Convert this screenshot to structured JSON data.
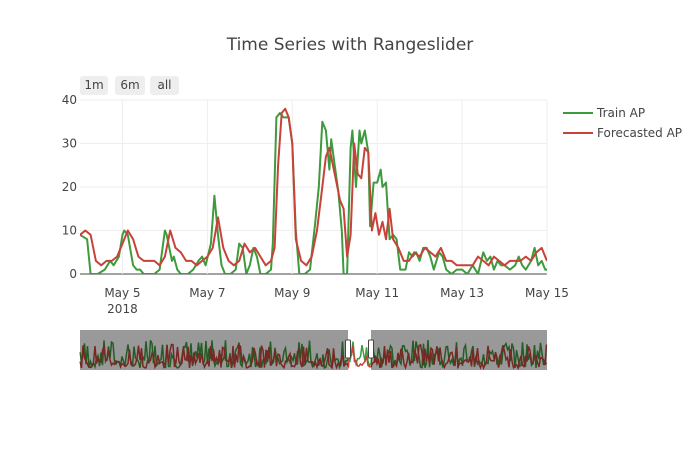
{
  "range_selector": {
    "buttons": [
      "1m",
      "6m",
      "all"
    ]
  },
  "chart_data": {
    "type": "line",
    "title": "Time Series with Rangeslider",
    "xlabel": "",
    "ylabel": "",
    "x_range": [
      "2018-05-04",
      "2018-05-15"
    ],
    "ylim": [
      0,
      40
    ],
    "y_ticks": [
      0,
      10,
      20,
      30,
      40
    ],
    "x_ticks": [
      {
        "date": "2018-05-05",
        "label": "May 5",
        "sublabel": "2018"
      },
      {
        "date": "2018-05-07",
        "label": "May 7",
        "sublabel": ""
      },
      {
        "date": "2018-05-09",
        "label": "May 9",
        "sublabel": ""
      },
      {
        "date": "2018-05-11",
        "label": "May 11",
        "sublabel": ""
      },
      {
        "date": "2018-05-13",
        "label": "May 13",
        "sublabel": ""
      },
      {
        "date": "2018-05-15",
        "label": "May 15",
        "sublabel": ""
      }
    ],
    "grid": true,
    "legend_position": "top-right",
    "rangeslider": true,
    "series": [
      {
        "name": "Train AP",
        "color": "#3d9a3d",
        "points": [
          [
            "2018-05-04 00:00",
            9
          ],
          [
            "2018-05-04 04:00",
            8
          ],
          [
            "2018-05-04 06:00",
            0
          ],
          [
            "2018-05-04 10:00",
            0
          ],
          [
            "2018-05-04 14:00",
            1
          ],
          [
            "2018-05-04 17:00",
            3
          ],
          [
            "2018-05-04 19:00",
            2
          ],
          [
            "2018-05-04 22:00",
            4
          ],
          [
            "2018-05-05 00:00",
            9
          ],
          [
            "2018-05-05 01:00",
            10
          ],
          [
            "2018-05-05 03:00",
            9
          ],
          [
            "2018-05-05 06:00",
            2
          ],
          [
            "2018-05-05 08:00",
            1
          ],
          [
            "2018-05-05 10:00",
            1
          ],
          [
            "2018-05-05 12:00",
            0
          ],
          [
            "2018-05-05 15:00",
            0
          ],
          [
            "2018-05-05 18:00",
            0
          ],
          [
            "2018-05-05 21:00",
            1
          ],
          [
            "2018-05-06 00:00",
            10
          ],
          [
            "2018-05-06 01:00",
            9
          ],
          [
            "2018-05-06 03:00",
            5
          ],
          [
            "2018-05-06 04:00",
            3
          ],
          [
            "2018-05-06 05:00",
            4
          ],
          [
            "2018-05-06 07:00",
            1
          ],
          [
            "2018-05-06 09:00",
            0
          ],
          [
            "2018-05-06 13:00",
            0
          ],
          [
            "2018-05-06 16:00",
            1
          ],
          [
            "2018-05-06 19:00",
            3
          ],
          [
            "2018-05-06 21:00",
            4
          ],
          [
            "2018-05-06 23:00",
            2
          ],
          [
            "2018-05-07 02:00",
            7
          ],
          [
            "2018-05-07 04:00",
            18
          ],
          [
            "2018-05-07 06:00",
            9
          ],
          [
            "2018-05-07 08:00",
            2
          ],
          [
            "2018-05-07 10:00",
            0
          ],
          [
            "2018-05-07 13:00",
            0
          ],
          [
            "2018-05-07 16:00",
            1
          ],
          [
            "2018-05-07 18:00",
            7
          ],
          [
            "2018-05-07 20:00",
            6
          ],
          [
            "2018-05-07 22:00",
            0
          ],
          [
            "2018-05-08 00:00",
            2
          ],
          [
            "2018-05-08 02:00",
            6
          ],
          [
            "2018-05-08 04:00",
            4
          ],
          [
            "2018-05-08 06:00",
            0
          ],
          [
            "2018-05-08 09:00",
            0
          ],
          [
            "2018-05-08 12:00",
            1
          ],
          [
            "2018-05-08 13:00",
            7
          ],
          [
            "2018-05-08 15:00",
            36
          ],
          [
            "2018-05-08 17:00",
            37
          ],
          [
            "2018-05-08 19:00",
            36
          ],
          [
            "2018-05-08 22:00",
            36
          ],
          [
            "2018-05-09 00:00",
            30
          ],
          [
            "2018-05-09 02:00",
            10
          ],
          [
            "2018-05-09 04:00",
            0
          ],
          [
            "2018-05-09 07:00",
            0
          ],
          [
            "2018-05-09 10:00",
            1
          ],
          [
            "2018-05-09 13:00",
            12
          ],
          [
            "2018-05-09 15:00",
            20
          ],
          [
            "2018-05-09 17:00",
            35
          ],
          [
            "2018-05-09 19:00",
            33
          ],
          [
            "2018-05-09 21:00",
            24
          ],
          [
            "2018-05-09 22:00",
            31
          ],
          [
            "2018-05-10 00:00",
            25
          ],
          [
            "2018-05-10 02:00",
            19
          ],
          [
            "2018-05-10 04:00",
            10
          ],
          [
            "2018-05-10 05:00",
            0
          ],
          [
            "2018-05-10 07:00",
            0
          ],
          [
            "2018-05-10 09:00",
            29
          ],
          [
            "2018-05-10 10:00",
            33
          ],
          [
            "2018-05-10 12:00",
            20
          ],
          [
            "2018-05-10 14:00",
            33
          ],
          [
            "2018-05-10 15:00",
            30
          ],
          [
            "2018-05-10 17:00",
            33
          ],
          [
            "2018-05-10 19:00",
            28
          ],
          [
            "2018-05-10 20:00",
            11
          ],
          [
            "2018-05-10 22:00",
            21
          ],
          [
            "2018-05-11 00:00",
            21
          ],
          [
            "2018-05-11 02:00",
            24
          ],
          [
            "2018-05-11 03:00",
            20
          ],
          [
            "2018-05-11 05:00",
            21
          ],
          [
            "2018-05-11 07:00",
            8
          ],
          [
            "2018-05-11 09:00",
            9
          ],
          [
            "2018-05-11 11:00",
            8
          ],
          [
            "2018-05-11 13:00",
            1
          ],
          [
            "2018-05-11 16:00",
            1
          ],
          [
            "2018-05-11 18:00",
            5
          ],
          [
            "2018-05-11 20:00",
            4
          ],
          [
            "2018-05-11 22:00",
            5
          ],
          [
            "2018-05-12 00:00",
            3
          ],
          [
            "2018-05-12 02:00",
            6
          ],
          [
            "2018-05-12 04:00",
            6
          ],
          [
            "2018-05-12 06:00",
            4
          ],
          [
            "2018-05-12 08:00",
            1
          ],
          [
            "2018-05-12 11:00",
            5
          ],
          [
            "2018-05-12 13:00",
            4
          ],
          [
            "2018-05-12 15:00",
            1
          ],
          [
            "2018-05-12 18:00",
            0
          ],
          [
            "2018-05-12 21:00",
            1
          ],
          [
            "2018-05-13 00:00",
            1
          ],
          [
            "2018-05-13 03:00",
            0
          ],
          [
            "2018-05-13 06:00",
            2
          ],
          [
            "2018-05-13 09:00",
            0
          ],
          [
            "2018-05-13 12:00",
            5
          ],
          [
            "2018-05-13 14:00",
            3
          ],
          [
            "2018-05-13 16:00",
            4
          ],
          [
            "2018-05-13 18:00",
            1
          ],
          [
            "2018-05-13 20:00",
            3
          ],
          [
            "2018-05-13 22:00",
            2
          ],
          [
            "2018-05-14 00:00",
            2
          ],
          [
            "2018-05-14 03:00",
            1
          ],
          [
            "2018-05-14 06:00",
            2
          ],
          [
            "2018-05-14 08:00",
            4
          ],
          [
            "2018-05-14 10:00",
            2
          ],
          [
            "2018-05-14 12:00",
            1
          ],
          [
            "2018-05-14 15:00",
            3
          ],
          [
            "2018-05-14 17:00",
            6
          ],
          [
            "2018-05-14 19:00",
            2
          ],
          [
            "2018-05-14 21:00",
            3
          ],
          [
            "2018-05-14 23:00",
            1
          ],
          [
            "2018-05-15 00:00",
            1
          ]
        ]
      },
      {
        "name": "Forecasted AP",
        "color": "#c8423a",
        "points": [
          [
            "2018-05-04 00:00",
            9
          ],
          [
            "2018-05-04 03:00",
            10
          ],
          [
            "2018-05-04 06:00",
            9
          ],
          [
            "2018-05-04 09:00",
            3
          ],
          [
            "2018-05-04 12:00",
            2
          ],
          [
            "2018-05-04 15:00",
            3
          ],
          [
            "2018-05-04 18:00",
            3
          ],
          [
            "2018-05-04 21:00",
            4
          ],
          [
            "2018-05-05 00:00",
            7
          ],
          [
            "2018-05-05 03:00",
            10
          ],
          [
            "2018-05-05 06:00",
            8
          ],
          [
            "2018-05-05 09:00",
            4
          ],
          [
            "2018-05-05 12:00",
            3
          ],
          [
            "2018-05-05 15:00",
            3
          ],
          [
            "2018-05-05 18:00",
            3
          ],
          [
            "2018-05-05 21:00",
            2
          ],
          [
            "2018-05-06 00:00",
            4
          ],
          [
            "2018-05-06 03:00",
            10
          ],
          [
            "2018-05-06 06:00",
            6
          ],
          [
            "2018-05-06 09:00",
            5
          ],
          [
            "2018-05-06 12:00",
            3
          ],
          [
            "2018-05-06 15:00",
            3
          ],
          [
            "2018-05-06 18:00",
            2
          ],
          [
            "2018-05-06 21:00",
            3
          ],
          [
            "2018-05-07 00:00",
            4
          ],
          [
            "2018-05-07 03:00",
            6
          ],
          [
            "2018-05-07 06:00",
            13
          ],
          [
            "2018-05-07 09:00",
            6
          ],
          [
            "2018-05-07 12:00",
            3
          ],
          [
            "2018-05-07 15:00",
            2
          ],
          [
            "2018-05-07 18:00",
            3
          ],
          [
            "2018-05-07 21:00",
            7
          ],
          [
            "2018-05-08 00:00",
            5
          ],
          [
            "2018-05-08 03:00",
            6
          ],
          [
            "2018-05-08 06:00",
            4
          ],
          [
            "2018-05-08 09:00",
            2
          ],
          [
            "2018-05-08 12:00",
            3
          ],
          [
            "2018-05-08 14:00",
            6
          ],
          [
            "2018-05-08 16:00",
            25
          ],
          [
            "2018-05-08 18:00",
            37
          ],
          [
            "2018-05-08 20:00",
            38
          ],
          [
            "2018-05-08 22:00",
            36
          ],
          [
            "2018-05-09 00:00",
            30
          ],
          [
            "2018-05-09 02:00",
            8
          ],
          [
            "2018-05-09 05:00",
            3
          ],
          [
            "2018-05-09 08:00",
            2
          ],
          [
            "2018-05-09 11:00",
            4
          ],
          [
            "2018-05-09 14:00",
            10
          ],
          [
            "2018-05-09 17:00",
            20
          ],
          [
            "2018-05-09 19:00",
            27
          ],
          [
            "2018-05-09 21:00",
            29
          ],
          [
            "2018-05-10 00:00",
            23
          ],
          [
            "2018-05-10 03:00",
            17
          ],
          [
            "2018-05-10 05:00",
            15
          ],
          [
            "2018-05-10 07:00",
            4
          ],
          [
            "2018-05-10 09:00",
            9
          ],
          [
            "2018-05-10 11:00",
            30
          ],
          [
            "2018-05-10 13:00",
            23
          ],
          [
            "2018-05-10 15:00",
            22
          ],
          [
            "2018-05-10 17:00",
            29
          ],
          [
            "2018-05-10 19:00",
            28
          ],
          [
            "2018-05-10 21:00",
            10
          ],
          [
            "2018-05-10 23:00",
            14
          ],
          [
            "2018-05-11 01:00",
            9
          ],
          [
            "2018-05-11 03:00",
            12
          ],
          [
            "2018-05-11 05:00",
            8
          ],
          [
            "2018-05-11 07:00",
            15
          ],
          [
            "2018-05-11 09:00",
            8
          ],
          [
            "2018-05-11 12:00",
            6
          ],
          [
            "2018-05-11 15:00",
            3
          ],
          [
            "2018-05-11 18:00",
            3
          ],
          [
            "2018-05-11 21:00",
            5
          ],
          [
            "2018-05-12 00:00",
            4
          ],
          [
            "2018-05-12 03:00",
            6
          ],
          [
            "2018-05-12 06:00",
            5
          ],
          [
            "2018-05-12 09:00",
            4
          ],
          [
            "2018-05-12 12:00",
            6
          ],
          [
            "2018-05-12 15:00",
            3
          ],
          [
            "2018-05-12 18:00",
            3
          ],
          [
            "2018-05-12 21:00",
            2
          ],
          [
            "2018-05-13 00:00",
            2
          ],
          [
            "2018-05-13 03:00",
            2
          ],
          [
            "2018-05-13 06:00",
            2
          ],
          [
            "2018-05-13 09:00",
            4
          ],
          [
            "2018-05-13 12:00",
            3
          ],
          [
            "2018-05-13 15:00",
            2
          ],
          [
            "2018-05-13 18:00",
            4
          ],
          [
            "2018-05-13 21:00",
            3
          ],
          [
            "2018-05-14 00:00",
            2
          ],
          [
            "2018-05-14 03:00",
            3
          ],
          [
            "2018-05-14 06:00",
            3
          ],
          [
            "2018-05-14 09:00",
            3
          ],
          [
            "2018-05-14 12:00",
            4
          ],
          [
            "2018-05-14 15:00",
            3
          ],
          [
            "2018-05-14 18:00",
            5
          ],
          [
            "2018-05-14 21:00",
            6
          ],
          [
            "2018-05-14 23:00",
            4
          ],
          [
            "2018-05-15 00:00",
            3
          ]
        ]
      }
    ]
  }
}
